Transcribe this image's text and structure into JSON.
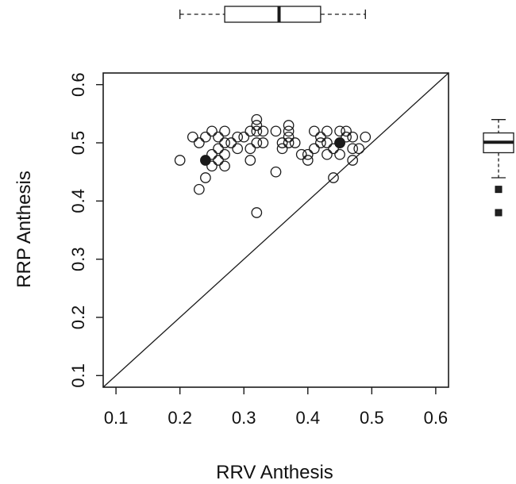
{
  "chart_data": {
    "type": "scatter",
    "xlabel": "RRV Anthesis",
    "ylabel": "RRP Anthesis",
    "xlim": [
      0.08,
      0.62
    ],
    "ylim": [
      0.08,
      0.62
    ],
    "x_ticks": [
      "0.1",
      "0.2",
      "0.3",
      "0.4",
      "0.5",
      "0.6"
    ],
    "y_ticks": [
      "0.1",
      "0.2",
      "0.3",
      "0.4",
      "0.5",
      "0.6"
    ],
    "reference_line": "y = x",
    "grid": false,
    "points": [
      {
        "x": 0.2,
        "y": 0.47
      },
      {
        "x": 0.22,
        "y": 0.51
      },
      {
        "x": 0.23,
        "y": 0.5
      },
      {
        "x": 0.23,
        "y": 0.42
      },
      {
        "x": 0.24,
        "y": 0.51
      },
      {
        "x": 0.24,
        "y": 0.44
      },
      {
        "x": 0.25,
        "y": 0.52
      },
      {
        "x": 0.25,
        "y": 0.48
      },
      {
        "x": 0.25,
        "y": 0.46
      },
      {
        "x": 0.26,
        "y": 0.51
      },
      {
        "x": 0.26,
        "y": 0.49
      },
      {
        "x": 0.26,
        "y": 0.47
      },
      {
        "x": 0.27,
        "y": 0.52
      },
      {
        "x": 0.27,
        "y": 0.5
      },
      {
        "x": 0.27,
        "y": 0.48
      },
      {
        "x": 0.27,
        "y": 0.46
      },
      {
        "x": 0.28,
        "y": 0.5
      },
      {
        "x": 0.29,
        "y": 0.51
      },
      {
        "x": 0.29,
        "y": 0.49
      },
      {
        "x": 0.3,
        "y": 0.51
      },
      {
        "x": 0.31,
        "y": 0.52
      },
      {
        "x": 0.31,
        "y": 0.49
      },
      {
        "x": 0.31,
        "y": 0.47
      },
      {
        "x": 0.32,
        "y": 0.54
      },
      {
        "x": 0.32,
        "y": 0.53
      },
      {
        "x": 0.32,
        "y": 0.52
      },
      {
        "x": 0.32,
        "y": 0.5
      },
      {
        "x": 0.32,
        "y": 0.38
      },
      {
        "x": 0.33,
        "y": 0.52
      },
      {
        "x": 0.33,
        "y": 0.5
      },
      {
        "x": 0.35,
        "y": 0.52
      },
      {
        "x": 0.35,
        "y": 0.45
      },
      {
        "x": 0.36,
        "y": 0.5
      },
      {
        "x": 0.36,
        "y": 0.49
      },
      {
        "x": 0.37,
        "y": 0.53
      },
      {
        "x": 0.37,
        "y": 0.52
      },
      {
        "x": 0.37,
        "y": 0.51
      },
      {
        "x": 0.37,
        "y": 0.5
      },
      {
        "x": 0.38,
        "y": 0.5
      },
      {
        "x": 0.39,
        "y": 0.48
      },
      {
        "x": 0.4,
        "y": 0.48
      },
      {
        "x": 0.4,
        "y": 0.47
      },
      {
        "x": 0.41,
        "y": 0.52
      },
      {
        "x": 0.41,
        "y": 0.49
      },
      {
        "x": 0.42,
        "y": 0.51
      },
      {
        "x": 0.42,
        "y": 0.5
      },
      {
        "x": 0.43,
        "y": 0.52
      },
      {
        "x": 0.43,
        "y": 0.5
      },
      {
        "x": 0.43,
        "y": 0.48
      },
      {
        "x": 0.44,
        "y": 0.49
      },
      {
        "x": 0.44,
        "y": 0.44
      },
      {
        "x": 0.45,
        "y": 0.52
      },
      {
        "x": 0.45,
        "y": 0.5
      },
      {
        "x": 0.45,
        "y": 0.48
      },
      {
        "x": 0.46,
        "y": 0.52
      },
      {
        "x": 0.46,
        "y": 0.51
      },
      {
        "x": 0.47,
        "y": 0.51
      },
      {
        "x": 0.47,
        "y": 0.49
      },
      {
        "x": 0.47,
        "y": 0.47
      },
      {
        "x": 0.48,
        "y": 0.49
      },
      {
        "x": 0.49,
        "y": 0.51
      }
    ],
    "highlighted_points": [
      {
        "x": 0.24,
        "y": 0.47
      },
      {
        "x": 0.45,
        "y": 0.5
      }
    ],
    "x_boxplot": {
      "min": 0.2,
      "q1": 0.27,
      "median": 0.355,
      "q3": 0.42,
      "max": 0.49
    },
    "y_boxplot": {
      "min": 0.44,
      "q1": 0.483,
      "median": 0.501,
      "q3": 0.517,
      "max": 0.54,
      "outliers": [
        0.38,
        0.42
      ]
    },
    "colors": {
      "marker": "#1a1a1a",
      "line": "#1a1a1a"
    }
  }
}
